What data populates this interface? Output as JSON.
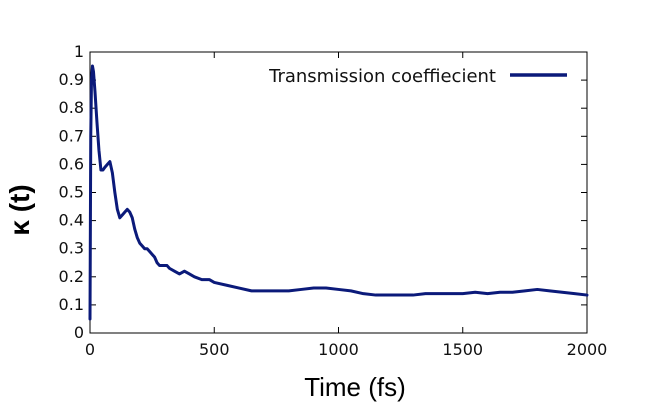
{
  "chart_data": {
    "type": "line",
    "title": "",
    "xlabel": "Time (fs)",
    "ylabel": "κ (t)",
    "xlim": [
      0,
      2000
    ],
    "ylim": [
      0,
      1
    ],
    "x_ticks": [
      0,
      500,
      1000,
      1500,
      2000
    ],
    "x_tick_labels": [
      "0",
      "500",
      "1000",
      "1500",
      "2000"
    ],
    "y_ticks": [
      0,
      0.1,
      0.2,
      0.3,
      0.4,
      0.5,
      0.6,
      0.7,
      0.8,
      0.9,
      1
    ],
    "y_tick_labels": [
      "0",
      "0.1",
      "0.2",
      "0.3",
      "0.4",
      "0.5",
      "0.6",
      "0.7",
      "0.8",
      "0.9",
      "1"
    ],
    "grid": false,
    "legend_position": "top-right",
    "line_color": "#0b1a7a",
    "series": [
      {
        "name": "Transmission coeffiecient",
        "x": [
          0,
          3,
          6,
          10,
          14,
          20,
          28,
          36,
          44,
          52,
          60,
          70,
          80,
          90,
          100,
          110,
          120,
          130,
          140,
          150,
          160,
          170,
          180,
          190,
          200,
          210,
          220,
          230,
          240,
          250,
          260,
          270,
          280,
          300,
          310,
          320,
          340,
          360,
          380,
          400,
          420,
          450,
          480,
          500,
          550,
          600,
          650,
          700,
          750,
          800,
          850,
          900,
          950,
          1000,
          1050,
          1100,
          1150,
          1200,
          1250,
          1300,
          1350,
          1400,
          1450,
          1500,
          1550,
          1600,
          1650,
          1700,
          1750,
          1800,
          1850,
          1900,
          1950,
          2000
        ],
        "y": [
          0.05,
          0.7,
          0.9,
          0.95,
          0.93,
          0.86,
          0.75,
          0.65,
          0.58,
          0.58,
          0.59,
          0.6,
          0.61,
          0.57,
          0.5,
          0.44,
          0.41,
          0.42,
          0.43,
          0.44,
          0.43,
          0.41,
          0.37,
          0.34,
          0.32,
          0.31,
          0.3,
          0.3,
          0.29,
          0.28,
          0.27,
          0.25,
          0.24,
          0.24,
          0.24,
          0.23,
          0.22,
          0.21,
          0.22,
          0.21,
          0.2,
          0.19,
          0.19,
          0.18,
          0.17,
          0.16,
          0.15,
          0.15,
          0.15,
          0.15,
          0.155,
          0.16,
          0.16,
          0.155,
          0.15,
          0.14,
          0.135,
          0.135,
          0.135,
          0.135,
          0.14,
          0.14,
          0.14,
          0.14,
          0.145,
          0.14,
          0.145,
          0.145,
          0.15,
          0.155,
          0.15,
          0.145,
          0.14,
          0.135
        ]
      }
    ]
  }
}
